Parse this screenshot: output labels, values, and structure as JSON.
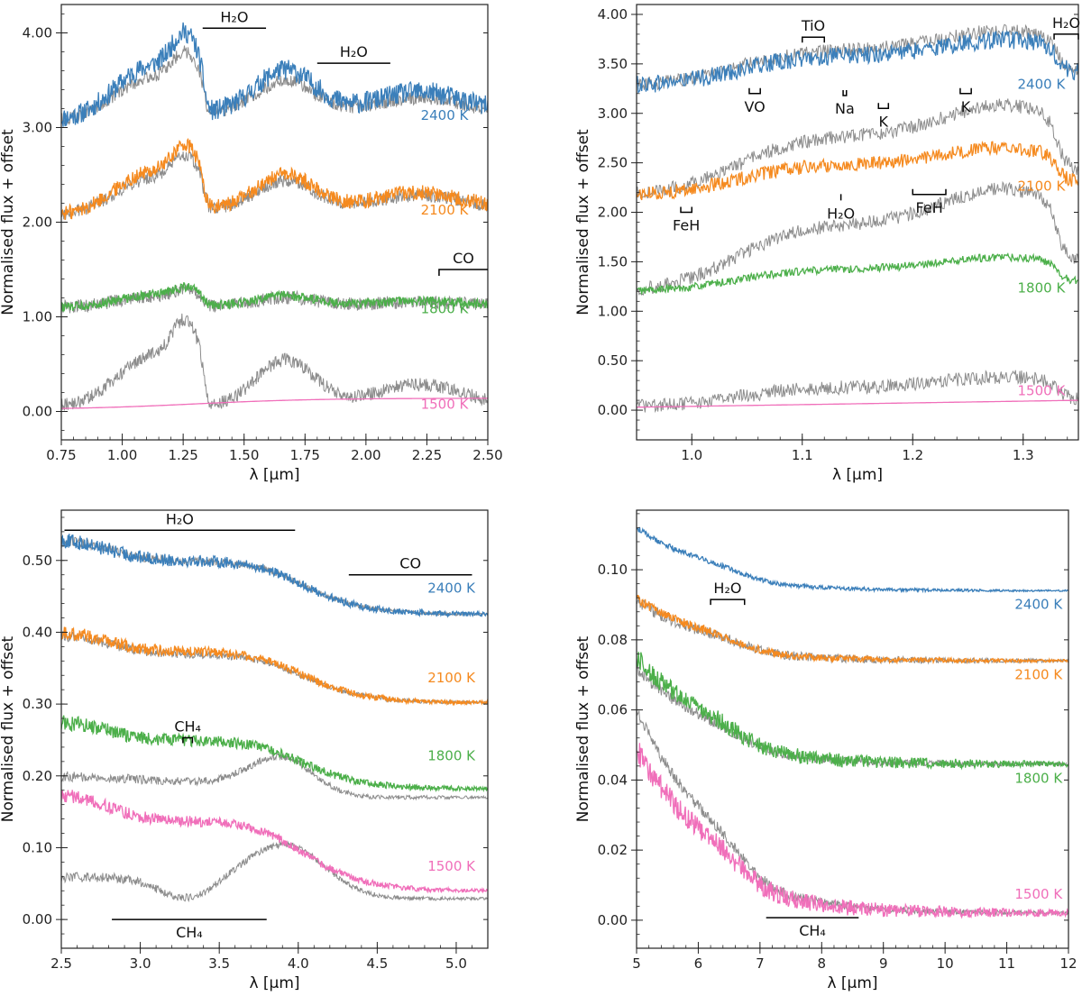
{
  "chart_data": [
    {
      "type": "line",
      "ylabel": "Normalised flux + offset",
      "xlabel": "λ [μm]",
      "xlim": [
        0.75,
        2.5
      ],
      "ylim": [
        -0.3,
        4.3
      ],
      "xticks": [
        "0.75",
        "1.00",
        "1.25",
        "1.50",
        "1.75",
        "2.00",
        "2.25",
        "2.50"
      ],
      "yticks": [
        "0.00",
        "1.00",
        "2.00",
        "3.00",
        "4.00"
      ],
      "series": [
        {
          "name": "2400 K",
          "color": "#3b7fba",
          "label_at": [
            2.42,
            3.08
          ]
        },
        {
          "name": "2100 K",
          "color": "#f58a1f",
          "label_at": [
            2.42,
            2.08
          ]
        },
        {
          "name": "1800 K",
          "color": "#4caf4a",
          "label_at": [
            2.42,
            1.04
          ]
        },
        {
          "name": "1500 K",
          "color": "#f06fba",
          "label_at": [
            2.42,
            0.03
          ]
        }
      ],
      "annotations": [
        {
          "text": "H₂O",
          "type": "bar",
          "x": [
            1.33,
            1.59
          ],
          "y": 4.05,
          "label_pos": "above"
        },
        {
          "text": "H₂O",
          "type": "bar",
          "x": [
            1.8,
            2.1
          ],
          "y": 3.68,
          "label_pos": "above"
        },
        {
          "text": "CO",
          "type": "bar-left-tick",
          "x": [
            2.3,
            2.5
          ],
          "y": 1.5,
          "label_pos": "above"
        }
      ]
    },
    {
      "type": "line",
      "ylabel": "Normalised flux + offset",
      "xlabel": "λ [μm]",
      "xlim": [
        0.95,
        1.35
      ],
      "ylim": [
        -0.3,
        4.1
      ],
      "xticks": [
        "1.0",
        "1.1",
        "1.2",
        "1.3"
      ],
      "yticks": [
        "0.00",
        "0.50",
        "1.00",
        "1.50",
        "2.00",
        "2.50",
        "3.00",
        "3.50",
        "4.00"
      ],
      "series": [
        {
          "name": "2400 K",
          "color": "#3b7fba",
          "label_at": [
            1.338,
            3.25
          ]
        },
        {
          "name": "2100 K",
          "color": "#f58a1f",
          "label_at": [
            1.338,
            2.22
          ]
        },
        {
          "name": "1800 K",
          "color": "#4caf4a",
          "label_at": [
            1.338,
            1.19
          ]
        },
        {
          "name": "1500 K",
          "color": "#f06fba",
          "label_at": [
            1.338,
            0.15
          ]
        }
      ],
      "annotations": [
        {
          "text": "TiO",
          "type": "bracket-down",
          "x": [
            1.1,
            1.12
          ],
          "y": 3.77,
          "label_pos": "above"
        },
        {
          "text": "H₂O",
          "type": "bracket-down",
          "x": [
            1.328,
            1.35
          ],
          "y": 3.8,
          "label_pos": "above"
        },
        {
          "text": "VO",
          "type": "bracket-up",
          "x": [
            1.052,
            1.062
          ],
          "y": 3.2,
          "label_pos": "below"
        },
        {
          "text": "Na",
          "type": "bracket-up",
          "x": [
            1.137,
            1.14
          ],
          "y": 3.18,
          "label_pos": "below"
        },
        {
          "text": "K",
          "type": "bracket-up",
          "x": [
            1.169,
            1.178
          ],
          "y": 3.05,
          "label_pos": "below"
        },
        {
          "text": "K",
          "type": "bracket-up",
          "x": [
            1.243,
            1.253
          ],
          "y": 3.2,
          "label_pos": "below"
        },
        {
          "text": "FeH",
          "type": "bracket-up",
          "x": [
            0.99,
            1.0
          ],
          "y": 2.0,
          "label_pos": "below"
        },
        {
          "text": "H₂O",
          "type": "tick-up",
          "x": [
            1.135,
            1.135
          ],
          "y": 2.12,
          "label_pos": "below"
        },
        {
          "text": "FeH",
          "type": "bracket-up",
          "x": [
            1.2,
            1.23
          ],
          "y": 2.18,
          "label_pos": "below"
        }
      ]
    },
    {
      "type": "line",
      "ylabel": "Normalised flux + offset",
      "xlabel": "λ [μm]",
      "xlim": [
        2.5,
        5.2
      ],
      "ylim": [
        -0.04,
        0.57
      ],
      "xticks": [
        "2.5",
        "3.0",
        "3.5",
        "4.0",
        "4.5",
        "5.0"
      ],
      "yticks": [
        "0.00",
        "0.10",
        "0.20",
        "0.30",
        "0.40",
        "0.50"
      ],
      "series": [
        {
          "name": "2400 K",
          "color": "#3b7fba",
          "label_at": [
            5.12,
            0.455
          ]
        },
        {
          "name": "2100 K",
          "color": "#f58a1f",
          "label_at": [
            5.12,
            0.33
          ]
        },
        {
          "name": "1800 K",
          "color": "#4caf4a",
          "label_at": [
            5.12,
            0.222
          ]
        },
        {
          "name": "1500 K",
          "color": "#f06fba",
          "label_at": [
            5.12,
            0.068
          ]
        }
      ],
      "annotations": [
        {
          "text": "H₂O",
          "type": "bar",
          "x": [
            2.52,
            3.98
          ],
          "y": 0.542,
          "label_pos": "above"
        },
        {
          "text": "CO",
          "type": "bar",
          "x": [
            4.32,
            5.1
          ],
          "y": 0.48,
          "label_pos": "above"
        },
        {
          "text": "CH₄",
          "type": "bracket-down",
          "x": [
            3.27,
            3.33
          ],
          "y": 0.253,
          "label_pos": "above"
        },
        {
          "text": "CH₄",
          "type": "bar",
          "x": [
            2.82,
            3.8
          ],
          "y": 0.0,
          "label_pos": "below"
        }
      ]
    },
    {
      "type": "line",
      "ylabel": "Normalised flux + offset",
      "xlabel": "λ [μm]",
      "xlim": [
        5,
        12
      ],
      "ylim": [
        -0.008,
        0.117
      ],
      "xticks": [
        "5",
        "6",
        "7",
        "8",
        "9",
        "10",
        "11",
        "12"
      ],
      "yticks": [
        "0.00",
        "0.02",
        "0.04",
        "0.06",
        "0.08",
        "0.10"
      ],
      "series": [
        {
          "name": "2400 K",
          "color": "#3b7fba",
          "label_at": [
            11.9,
            0.0888
          ]
        },
        {
          "name": "2100 K",
          "color": "#f58a1f",
          "label_at": [
            11.9,
            0.0688
          ]
        },
        {
          "name": "1800 K",
          "color": "#4caf4a",
          "label_at": [
            11.9,
            0.0392
          ]
        },
        {
          "name": "1500 K",
          "color": "#f06fba",
          "label_at": [
            11.9,
            0.0062
          ]
        }
      ],
      "annotations": [
        {
          "text": "H₂O",
          "type": "bracket-down",
          "x": [
            6.2,
            6.75
          ],
          "y": 0.0915,
          "label_pos": "above"
        },
        {
          "text": "CH₄",
          "type": "bar",
          "x": [
            7.1,
            8.6
          ],
          "y": 0.0007,
          "label_pos": "below"
        }
      ]
    }
  ]
}
